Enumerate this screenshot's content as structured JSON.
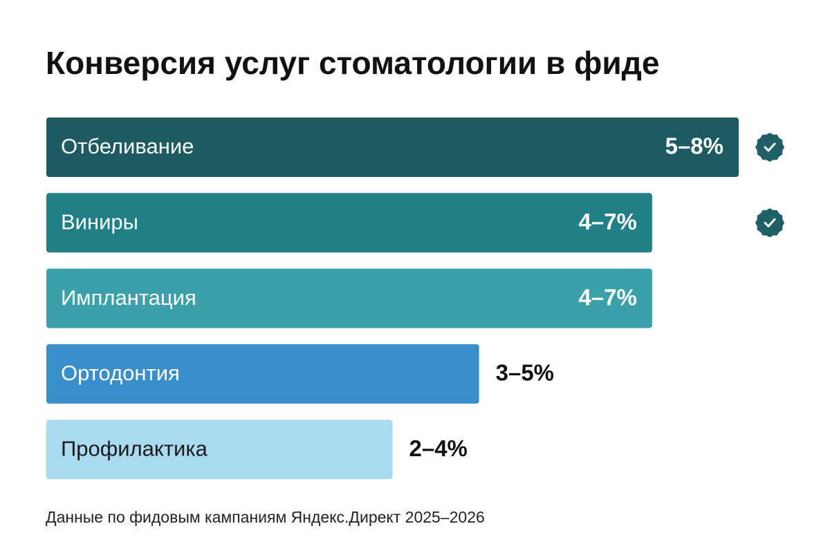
{
  "chart_data": {
    "type": "range-bar",
    "title": "Конверсия услуг стоматологии в фиде",
    "footnote": "Данные по фидовым кампаниям Яндекс.Директ 2025–2026",
    "categories": [
      "Отбеливание",
      "Виниры",
      "Имплантация",
      "Ортодонтия",
      "Профилактика"
    ],
    "low": [
      5,
      4,
      4,
      3,
      2
    ],
    "high": [
      8,
      7,
      7,
      5,
      4
    ],
    "value_labels": [
      "5–8%",
      "4–7%",
      "4–7%",
      "3–5%",
      "2–4%"
    ],
    "colors": [
      "#1d5a62",
      "#217f86",
      "#3ca0aa",
      "#3a8ec9",
      "#a9daf0"
    ],
    "label_colors": [
      "#ffffff",
      "#ffffff",
      "#ffffff",
      "#ffffff",
      "#1a1a1a"
    ],
    "checked": [
      true,
      true,
      false,
      false,
      false
    ]
  }
}
